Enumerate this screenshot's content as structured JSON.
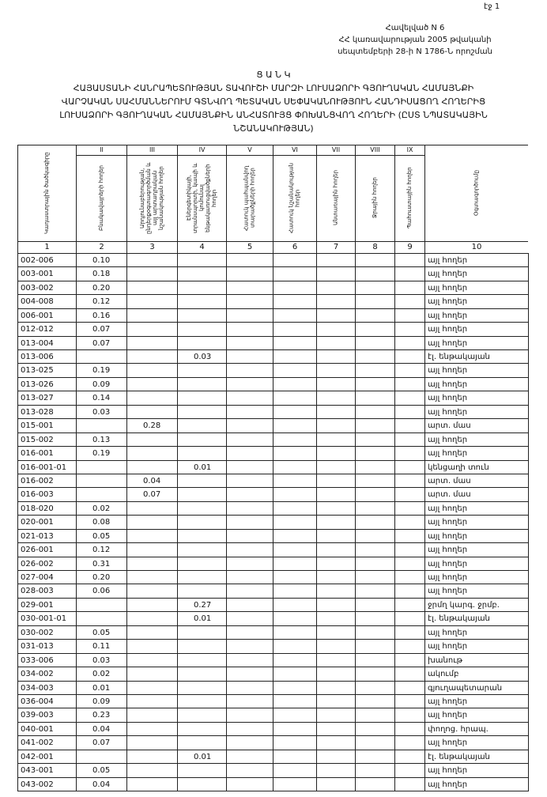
{
  "page_number": "էջ 1",
  "header": {
    "lines": [
      "Հավելված N 6",
      "ՀՀ կառավարության 2005 թվականի",
      "սեպտեմբերի 28-ի N 1786-Ն որոշման"
    ]
  },
  "title": {
    "heading": "Ց Ա Ն Կ",
    "lines": [
      "ՀԱՅԱՍՏԱՆԻ ՀԱՆՐԱՊԵՏՈՒԹՅԱՆ ՏԱՎՈՒՇԻ ՄԱՐԶԻ ԼՈՒՍԱՁՈՐԻ ԳՅՈՒՂԱԿԱՆ ՀԱՄԱՅՆՔԻ",
      "ՎԱՐՉԱԿԱՆ ՍԱՀՄԱՆՆԵՐՈՒՄ ԳՏՆՎՈՂ ՊԵՏԱԿԱՆ ՍԵՓԱԿԱՆՈՒԹՅՈՒՆ ՀԱՆԴԻՍԱՑՈՂ ՀՈՂԵՐԻՑ",
      "ԼՈՒՍԱՁՈՐԻ ԳՅՈՒՂԱԿԱՆ ՀԱՄԱՅՆՔԻՆ ԱՆՀԱՏՈՒՅՑ ՓՈԽԱՆՑՎՈՂ ՀՈՂԵՐԻ (ԸՍՏ ՆՊԱՏԱԿԱՅԻՆ",
      "ՆՇԱՆԱԿՈՒԹՅԱՆ)"
    ]
  },
  "table": {
    "numerals": [
      "II",
      "III",
      "IV",
      "V",
      "VI",
      "VII",
      "VIII",
      "IX"
    ],
    "headers": [
      "Կադաստրային ծածկագիրը",
      "Բնակավայրերի հողեր",
      "Արդյունաբերության, ընդերքօգտագործման և այլ արտադրական նշանակության հողեր",
      "Էներգետիկայի, տրանսպորտի, կապի և կոմունալ ենթակառուցվածքների հողեր",
      "Հատուկ պահպանվող տարածքների հողեր",
      "Հատուկ նշանակության հողեր",
      "Անտառային հողեր",
      "Ջրային հողեր",
      "Պահուստային հողեր",
      "Օգտագործումը"
    ],
    "column_numbers": [
      1,
      2,
      3,
      4,
      5,
      6,
      7,
      8,
      9,
      10
    ],
    "rows": [
      {
        "code": "002-006",
        "II": "0.10",
        "use": "այլ հողեր"
      },
      {
        "code": "003-001",
        "II": "0.18",
        "use": "այլ հողեր"
      },
      {
        "code": "003-002",
        "II": "0.20",
        "use": "այլ հողեր"
      },
      {
        "code": "004-008",
        "II": "0.12",
        "use": "այլ հողեր"
      },
      {
        "code": "006-001",
        "II": "0.16",
        "use": "այլ հողեր"
      },
      {
        "code": "012-012",
        "II": "0.07",
        "use": "այլ հողեր"
      },
      {
        "code": "013-004",
        "II": "0.07",
        "use": "այլ հողեր"
      },
      {
        "code": "013-006",
        "IV": "0.03",
        "use": "էլ. ենթակայան"
      },
      {
        "code": "013-025",
        "II": "0.19",
        "use": "այլ հողեր"
      },
      {
        "code": "013-026",
        "II": "0.09",
        "use": "այլ հողեր"
      },
      {
        "code": "013-027",
        "II": "0.14",
        "use": "այլ հողեր"
      },
      {
        "code": "013-028",
        "II": "0.03",
        "use": "այլ հողեր"
      },
      {
        "code": "015-001",
        "III": "0.28",
        "use": "արտ. մաս"
      },
      {
        "code": "015-002",
        "II": "0.13",
        "use": "այլ հողեր"
      },
      {
        "code": "016-001",
        "II": "0.19",
        "use": "այլ հողեր"
      },
      {
        "code": "016-001-01",
        "IV": "0.01",
        "use": "կենցաղի տուն"
      },
      {
        "code": "016-002",
        "III": "0.04",
        "use": "արտ. մաս"
      },
      {
        "code": "016-003",
        "III": "0.07",
        "use": "արտ. մաս"
      },
      {
        "code": "018-020",
        "II": "0.02",
        "use": "այլ հողեր"
      },
      {
        "code": "020-001",
        "II": "0.08",
        "use": "այլ հողեր"
      },
      {
        "code": "021-013",
        "II": "0.05",
        "use": "այլ հողեր"
      },
      {
        "code": "026-001",
        "II": "0.12",
        "use": "այլ հողեր"
      },
      {
        "code": "026-002",
        "II": "0.31",
        "use": "այլ հողեր"
      },
      {
        "code": "027-004",
        "II": "0.20",
        "use": "այլ հողեր"
      },
      {
        "code": "028-003",
        "II": "0.06",
        "use": "այլ հողեր"
      },
      {
        "code": "029-001",
        "IV": "0.27",
        "use": "ջրմղ կարգ. ջրմբ."
      },
      {
        "code": "030-001-01",
        "IV": "0.01",
        "use": "էլ. ենթակայան"
      },
      {
        "code": "030-002",
        "II": "0.05",
        "use": "այլ հողեր"
      },
      {
        "code": "031-013",
        "II": "0.11",
        "use": "այլ հողեր"
      },
      {
        "code": "033-006",
        "II": "0.03",
        "use": "խանութ"
      },
      {
        "code": "034-002",
        "II": "0.02",
        "use": "ակումբ"
      },
      {
        "code": "034-003",
        "II": "0.01",
        "use": "գյուղապետարան"
      },
      {
        "code": "036-004",
        "II": "0.09",
        "use": "այլ հողեր"
      },
      {
        "code": "039-003",
        "II": "0.23",
        "use": "այլ հողեր"
      },
      {
        "code": "040-001",
        "II": "0.04",
        "use": "փողոց. հրապ."
      },
      {
        "code": "041-002",
        "II": "0.07",
        "use": "այլ հողեր"
      },
      {
        "code": "042-001",
        "IV": "0.01",
        "use": "էլ. ենթակայան"
      },
      {
        "code": "043-001",
        "II": "0.05",
        "use": "այլ հողեր"
      },
      {
        "code": "043-002",
        "II": "0.04",
        "use": "այլ հողեր"
      }
    ]
  }
}
